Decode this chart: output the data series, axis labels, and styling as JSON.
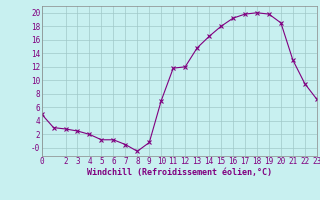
{
  "x": [
    0,
    1,
    2,
    3,
    4,
    5,
    6,
    7,
    8,
    9,
    10,
    11,
    12,
    13,
    14,
    15,
    16,
    17,
    18,
    19,
    20,
    21,
    22,
    23
  ],
  "y": [
    5.0,
    3.0,
    2.8,
    2.5,
    2.0,
    1.2,
    1.2,
    0.5,
    -0.5,
    0.8,
    7.0,
    11.8,
    12.0,
    14.8,
    16.5,
    18.0,
    19.2,
    19.8,
    20.0,
    19.8,
    18.5,
    13.0,
    9.5,
    7.2
  ],
  "xlabel": "Windchill (Refroidissement éolien,°C)",
  "xlim": [
    0,
    23
  ],
  "ylim": [
    -1.2,
    21
  ],
  "yticks": [
    0,
    2,
    4,
    6,
    8,
    10,
    12,
    14,
    16,
    18,
    20
  ],
  "ytick_labels": [
    "-0",
    "2",
    "4",
    "6",
    "8",
    "10",
    "12",
    "14",
    "16",
    "18",
    "20"
  ],
  "xticks": [
    0,
    2,
    3,
    4,
    5,
    6,
    7,
    8,
    9,
    10,
    11,
    12,
    13,
    14,
    15,
    16,
    17,
    18,
    19,
    20,
    21,
    22,
    23
  ],
  "line_color": "#800080",
  "marker": "x",
  "bg_color": "#c8f0f0",
  "grid_color": "#a0c8c8",
  "font_color": "#800080",
  "tick_fontsize": 5.5,
  "xlabel_fontsize": 6.0
}
